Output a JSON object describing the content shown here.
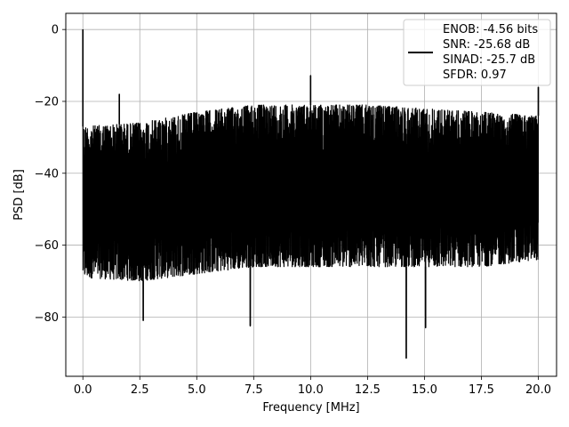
{
  "chart_data": {
    "type": "line",
    "xlabel": "Frequency [MHz]",
    "ylabel": "PSD [dB]",
    "xlim": [
      -0.75,
      20.8
    ],
    "ylim": [
      -96.5,
      4.5
    ],
    "x_ticks": [
      0.0,
      2.5,
      5.0,
      7.5,
      10.0,
      12.5,
      15.0,
      17.5,
      20.0
    ],
    "x_tick_labels": [
      "0.0",
      "2.5",
      "5.0",
      "7.5",
      "10.0",
      "12.5",
      "15.0",
      "17.5",
      "20.0"
    ],
    "y_ticks": [
      0,
      -20,
      -40,
      -60,
      -80
    ],
    "y_tick_labels": [
      "0",
      "−20",
      "−40",
      "−60",
      "−80"
    ],
    "grid": true,
    "legend_position": "top-right",
    "legend_lines": [
      "ENOB: -4.56 bits",
      "SNR: -25.68 dB",
      "SINAD: -25.7 dB",
      "SFDR: 0.97"
    ],
    "series": [
      {
        "color": "#000000",
        "x_range": [
          0.0,
          20.0
        ],
        "noise_envelope": {
          "x": [
            0.0,
            2.5,
            5.0,
            7.5,
            10.0,
            12.5,
            15.0,
            17.5,
            20.0
          ],
          "upper": [
            -27,
            -26,
            -23,
            -21,
            -21,
            -21,
            -22,
            -23,
            -24
          ],
          "lower": [
            -69,
            -70,
            -68,
            -66,
            -66,
            -66,
            -66,
            -66,
            -64
          ]
        },
        "peaks": [
          {
            "x": 0.0,
            "y": 0.0
          },
          {
            "x": 1.6,
            "y": -18.0
          },
          {
            "x": 10.0,
            "y": -12.8
          },
          {
            "x": 20.0,
            "y": -16.0
          }
        ],
        "dips": [
          {
            "x": 2.65,
            "y": -81.0
          },
          {
            "x": 7.35,
            "y": -82.5
          },
          {
            "x": 14.2,
            "y": -91.5
          },
          {
            "x": 15.05,
            "y": -83.0
          }
        ]
      }
    ]
  }
}
